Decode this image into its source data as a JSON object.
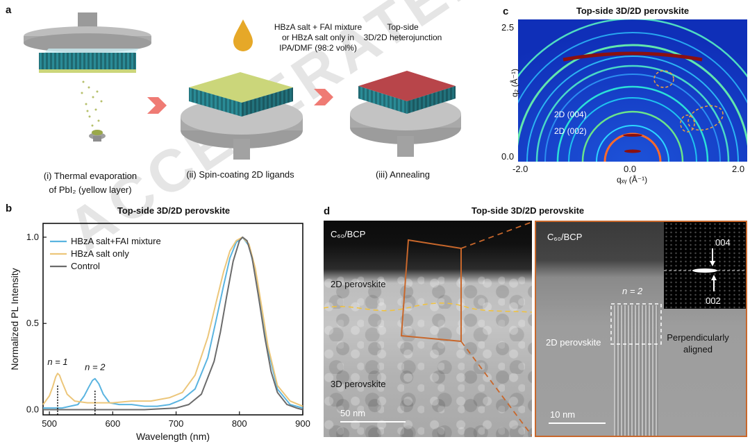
{
  "watermark": "ACCELERATED ARTICLE PREVIEW",
  "panel_a": {
    "letter": "a",
    "droplet_text_1": "HBzA salt + FAI mixture",
    "droplet_text_2": "or HBzA salt only in",
    "droplet_text_3": "IPA/DMF (98:2 vol%)",
    "hetero_text_1": "Top-side",
    "hetero_text_2": "3D/2D heterojunction",
    "step1_line1": "(i) Thermal evaporation",
    "step1_line2": "of PbI₂ (yellow layer)",
    "step2": "(ii) Spin-coating 2D ligands",
    "step3": "(iii) Annealing",
    "colors": {
      "green": "#cbd67a",
      "red": "#b8454a",
      "teal": "#2a8b96",
      "arrow": "#ef7b74",
      "drop": "#e6a828"
    }
  },
  "panel_b": {
    "letter": "b",
    "title": "Top-side 3D/2D perovskite",
    "annotation_n1": "n = 1",
    "annotation_n2": "n = 2"
  },
  "panel_c": {
    "letter": "c",
    "title": "Top-side 3D/2D perovskite",
    "y_label": "q₂ (Å⁻¹)",
    "x_label": "qₓᵧ (Å⁻¹)",
    "y_ticks": [
      "2.5",
      "0.0"
    ],
    "x_ticks": [
      "-2.0",
      "0.0",
      "2.0"
    ],
    "label_004": "2D (004)",
    "label_002": "2D (002)"
  },
  "panel_d": {
    "letter": "d",
    "title": "Top-side 3D/2D perovskite",
    "left_c60": "C₆₀/BCP",
    "left_2d": "2D perovskite",
    "left_3d": "3D perovskite",
    "left_scale": "50 nm",
    "right_c60": "C₆₀/BCP",
    "right_n2": "n = 2",
    "right_2d": "2D perovskite",
    "right_perp_1": "Perpendicularly",
    "right_perp_2": "aligned",
    "right_scale": "10 nm",
    "fft_004": "004",
    "fft_002": "002"
  },
  "chart_data": {
    "type": "line",
    "title": "Top-side 3D/2D perovskite",
    "xlabel": "Wavelength (nm)",
    "ylabel": "Normalized PL Intensity",
    "xlim": [
      490,
      900
    ],
    "ylim": [
      -0.03,
      1.08
    ],
    "x_ticks": [
      500,
      600,
      700,
      800,
      900
    ],
    "y_ticks": [
      0.0,
      0.5,
      1.0
    ],
    "legend_position": "top-left",
    "series": [
      {
        "name": "HBzA salt+FAI mixture",
        "color": "#5ab4e0",
        "x": [
          490,
          520,
          545,
          555,
          562,
          568,
          572,
          578,
          585,
          595,
          610,
          630,
          650,
          670,
          690,
          710,
          730,
          750,
          765,
          775,
          785,
          795,
          805,
          815,
          825,
          835,
          845,
          860,
          880,
          900
        ],
        "y": [
          0.01,
          0.01,
          0.03,
          0.08,
          0.13,
          0.17,
          0.18,
          0.15,
          0.09,
          0.04,
          0.03,
          0.03,
          0.02,
          0.02,
          0.03,
          0.06,
          0.12,
          0.3,
          0.55,
          0.72,
          0.88,
          0.97,
          1.0,
          0.95,
          0.8,
          0.58,
          0.35,
          0.12,
          0.03,
          0.01
        ]
      },
      {
        "name": "HBzA salt only",
        "color": "#ecc67a",
        "x": [
          490,
          500,
          505,
          510,
          513,
          516,
          520,
          528,
          540,
          560,
          580,
          600,
          630,
          660,
          690,
          710,
          730,
          750,
          765,
          775,
          785,
          795,
          805,
          815,
          825,
          835,
          845,
          860,
          880,
          900
        ],
        "y": [
          0.03,
          0.08,
          0.13,
          0.19,
          0.21,
          0.2,
          0.16,
          0.09,
          0.05,
          0.04,
          0.04,
          0.04,
          0.05,
          0.05,
          0.07,
          0.1,
          0.2,
          0.42,
          0.65,
          0.8,
          0.92,
          0.98,
          1.0,
          0.96,
          0.82,
          0.6,
          0.37,
          0.14,
          0.05,
          0.02
        ]
      },
      {
        "name": "Control",
        "color": "#6b6b6b",
        "x": [
          490,
          550,
          600,
          650,
          700,
          720,
          740,
          760,
          770,
          780,
          790,
          800,
          805,
          812,
          820,
          830,
          840,
          850,
          860,
          875,
          890,
          900
        ],
        "y": [
          0.0,
          0.0,
          0.0,
          0.0,
          0.01,
          0.03,
          0.09,
          0.28,
          0.45,
          0.66,
          0.86,
          0.98,
          1.0,
          0.98,
          0.88,
          0.66,
          0.42,
          0.22,
          0.1,
          0.03,
          0.01,
          0.0
        ]
      }
    ]
  }
}
